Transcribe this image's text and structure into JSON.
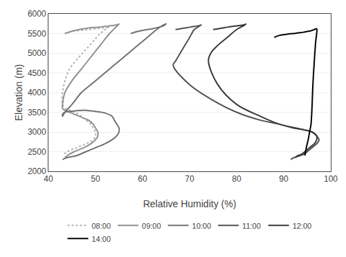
{
  "chart_data": {
    "type": "line",
    "xlabel": "Relative Humidity (%)",
    "ylabel": "Elevation (m)",
    "xlim": [
      40,
      100
    ],
    "ylim": [
      2000,
      6000
    ],
    "xticks": [
      40,
      50,
      60,
      70,
      80,
      90,
      100
    ],
    "yticks": [
      2000,
      2500,
      3000,
      3500,
      4000,
      4500,
      5000,
      5500,
      6000
    ],
    "grid": "y",
    "legend": "bottom",
    "series": [
      {
        "name": "08:00",
        "color": "#b0b0b0",
        "line_style": "dotted",
        "x": [
          43.5,
          44.0,
          44.5,
          45.5,
          47.0,
          48.5,
          50.0,
          51.5,
          52.5,
          53.0,
          52.5,
          51.0,
          49.5,
          48.0,
          46.5,
          44.5,
          43.5,
          43.0,
          43.0,
          43.5,
          44.5,
          45.5,
          46.5,
          47.0,
          47.5,
          48.0,
          48.5,
          49.0,
          49.5,
          50.0,
          50.0,
          49.5,
          48.0,
          46.0,
          44.0,
          43.0
        ],
        "values": [
          5500,
          5520,
          5540,
          5560,
          5580,
          5600,
          5620,
          5640,
          5660,
          5680,
          5640,
          5500,
          5300,
          5100,
          4900,
          4600,
          4300,
          4000,
          3700,
          3600,
          3550,
          3500,
          3450,
          3400,
          3350,
          3300,
          3250,
          3200,
          3100,
          3000,
          2900,
          2800,
          2700,
          2600,
          2500,
          2400
        ]
      },
      {
        "name": "09:00",
        "color": "#909090",
        "line_style": "solid",
        "x": [
          43.5,
          44.0,
          45.0,
          46.5,
          48.5,
          50.5,
          52.0,
          53.5,
          54.5,
          55.0,
          54.5,
          53.0,
          51.0,
          49.0,
          47.0,
          45.0,
          43.5,
          43.0,
          43.0,
          43.5,
          44.5,
          45.5,
          46.5,
          47.5,
          48.5,
          49.5,
          50.0,
          50.5,
          50.5,
          50.0,
          49.0,
          47.5,
          45.5,
          44.0,
          43.5
        ],
        "values": [
          5500,
          5520,
          5560,
          5600,
          5640,
          5660,
          5680,
          5700,
          5720,
          5740,
          5680,
          5500,
          5200,
          4900,
          4600,
          4300,
          4000,
          3700,
          3600,
          3550,
          3500,
          3450,
          3400,
          3350,
          3300,
          3200,
          3100,
          3000,
          2900,
          2800,
          2700,
          2600,
          2500,
          2400,
          2350
        ]
      },
      {
        "name": "10:00",
        "color": "#707070",
        "line_style": "solid",
        "x": [
          57.5,
          58.5,
          60.0,
          62.0,
          63.5,
          64.5,
          65.0,
          64.5,
          63.0,
          61.0,
          59.0,
          57.0,
          55.0,
          53.0,
          51.0,
          49.0,
          47.0,
          45.0,
          43.5,
          43.0,
          43.0,
          43.5,
          44.5,
          46.0,
          48.0,
          50.0,
          52.0,
          53.5,
          54.0,
          54.5,
          55.0,
          55.0,
          54.5,
          53.5,
          52.0,
          50.0,
          48.0,
          46.0,
          44.0,
          43.0
        ],
        "values": [
          5500,
          5540,
          5580,
          5620,
          5660,
          5700,
          5750,
          5720,
          5600,
          5400,
          5200,
          5000,
          4800,
          4600,
          4400,
          4200,
          4000,
          3700,
          3500,
          3400,
          3450,
          3500,
          3520,
          3540,
          3550,
          3520,
          3480,
          3400,
          3300,
          3200,
          3100,
          3000,
          2900,
          2800,
          2700,
          2600,
          2500,
          2400,
          2350,
          2300
        ]
      },
      {
        "name": "11:00",
        "color": "#505050",
        "line_style": "solid",
        "x": [
          67.0,
          68.0,
          69.0,
          70.0,
          71.0,
          72.0,
          72.5,
          72.0,
          71.0,
          70.0,
          69.0,
          68.0,
          67.0,
          66.5,
          70.0,
          75.0,
          80.0,
          85.0,
          89.0,
          92.0,
          94.5,
          96.0,
          97.0,
          97.5,
          97.0,
          96.5,
          96.0,
          95.5,
          95.0,
          94.5,
          94.0,
          93.5,
          93.0,
          92.5,
          92.0,
          91.5
        ],
        "values": [
          5600,
          5620,
          5640,
          5660,
          5680,
          5700,
          5720,
          5680,
          5600,
          5400,
          5200,
          5000,
          4800,
          4700,
          4200,
          3800,
          3500,
          3300,
          3200,
          3100,
          3050,
          3000,
          2900,
          2800,
          2700,
          2650,
          2600,
          2550,
          2500,
          2450,
          2420,
          2400,
          2380,
          2360,
          2340,
          2300
        ]
      },
      {
        "name": "12:00",
        "color": "#383838",
        "line_style": "solid",
        "x": [
          75.0,
          76.0,
          77.5,
          79.0,
          80.5,
          81.5,
          82.0,
          81.5,
          80.0,
          78.0,
          76.0,
          74.5,
          74.0,
          76.0,
          80.0,
          85.0,
          89.0,
          92.5,
          94.5,
          96.0,
          97.0,
          97.0,
          96.5,
          96.0,
          95.5,
          95.0,
          94.5,
          94.0,
          93.5,
          93.0,
          92.5
        ],
        "values": [
          5600,
          5620,
          5650,
          5680,
          5700,
          5720,
          5740,
          5700,
          5600,
          5400,
          5200,
          5000,
          4800,
          4200,
          3700,
          3400,
          3200,
          3100,
          3050,
          3000,
          2900,
          2800,
          2700,
          2650,
          2600,
          2550,
          2500,
          2450,
          2420,
          2400,
          2350
        ]
      },
      {
        "name": "14:00",
        "color": "#000000",
        "line_style": "solid",
        "x": [
          88.0,
          89.0,
          90.5,
          92.0,
          93.5,
          94.5,
          95.5,
          96.0,
          96.5,
          97.0,
          97.0,
          96.8,
          96.5,
          96.2,
          96.0,
          95.8,
          95.5,
          95.2,
          95.0,
          94.8,
          94.5
        ],
        "values": [
          5400,
          5450,
          5480,
          5500,
          5520,
          5540,
          5560,
          5580,
          5600,
          5620,
          5500,
          5300,
          4800,
          4200,
          3600,
          3200,
          3000,
          2800,
          2700,
          2600,
          2400
        ]
      }
    ]
  }
}
